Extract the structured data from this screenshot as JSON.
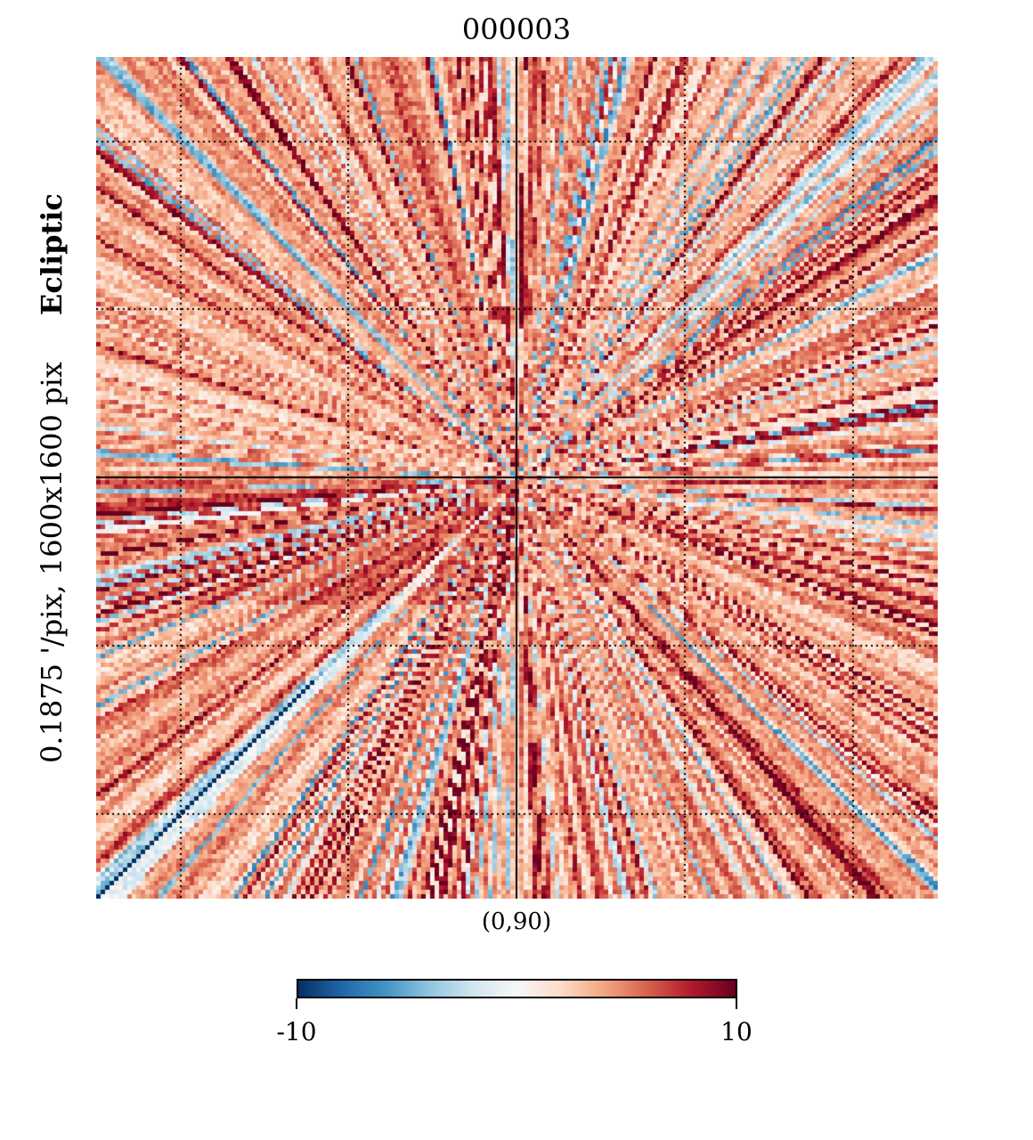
{
  "chart_data": {
    "type": "heatmap",
    "title": "000003",
    "projection_label": "Ecliptic",
    "resolution_label": "0.1875 '/pix,",
    "size_label": "1600x1600 pix",
    "center_label": "(0,90)",
    "colormap": "RdBu_r",
    "colorbar": {
      "min": -10,
      "max": 10,
      "min_label": "-10",
      "max_label": "10",
      "stops": [
        "#053061",
        "#2166ac",
        "#4393c3",
        "#92c5de",
        "#d1e5f0",
        "#f7f7f7",
        "#fddbc7",
        "#f4a582",
        "#d6604d",
        "#b2182b",
        "#67001f"
      ]
    },
    "graticule": "dotted",
    "description_values": {
      "dominant_range": [
        -2,
        8
      ],
      "structure": "radial streaks converging on map center"
    }
  }
}
